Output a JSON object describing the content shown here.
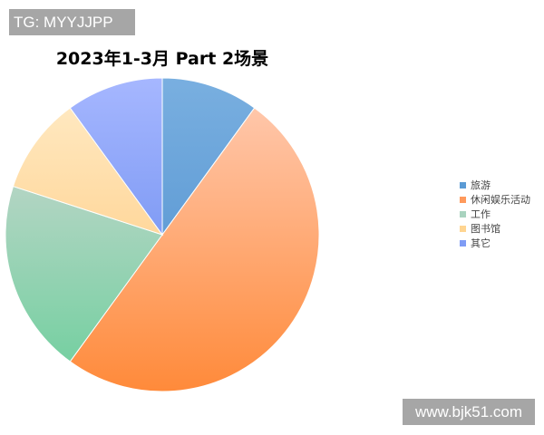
{
  "watermarks": {
    "top_left": "TG: MYYJJPP",
    "bottom_right": "www.bjk51.com"
  },
  "chart_data": {
    "type": "pie",
    "title": "2023年1-3月 Part 2场景",
    "categories": [
      "旅游",
      "休闲娱乐活动",
      "工作",
      "图书馆",
      "其它"
    ],
    "values": [
      10,
      50,
      20,
      10,
      10
    ],
    "colors": [
      "#5b9bd5",
      "#ff9a5c",
      "#a9d3bf",
      "#ffd591",
      "#7f9cf5"
    ],
    "gradients": [
      [
        "#79afe0",
        "#4a8ccc"
      ],
      [
        "#ffcdb6",
        "#ff8a3a"
      ],
      [
        "#d8d8d8",
        "#6ccf9c"
      ],
      [
        "#ffecc8",
        "#ffc370"
      ],
      [
        "#a6b7ff",
        "#5a80ea"
      ]
    ],
    "start_angle": "top",
    "direction": "clockwise",
    "legend_position": "right"
  }
}
